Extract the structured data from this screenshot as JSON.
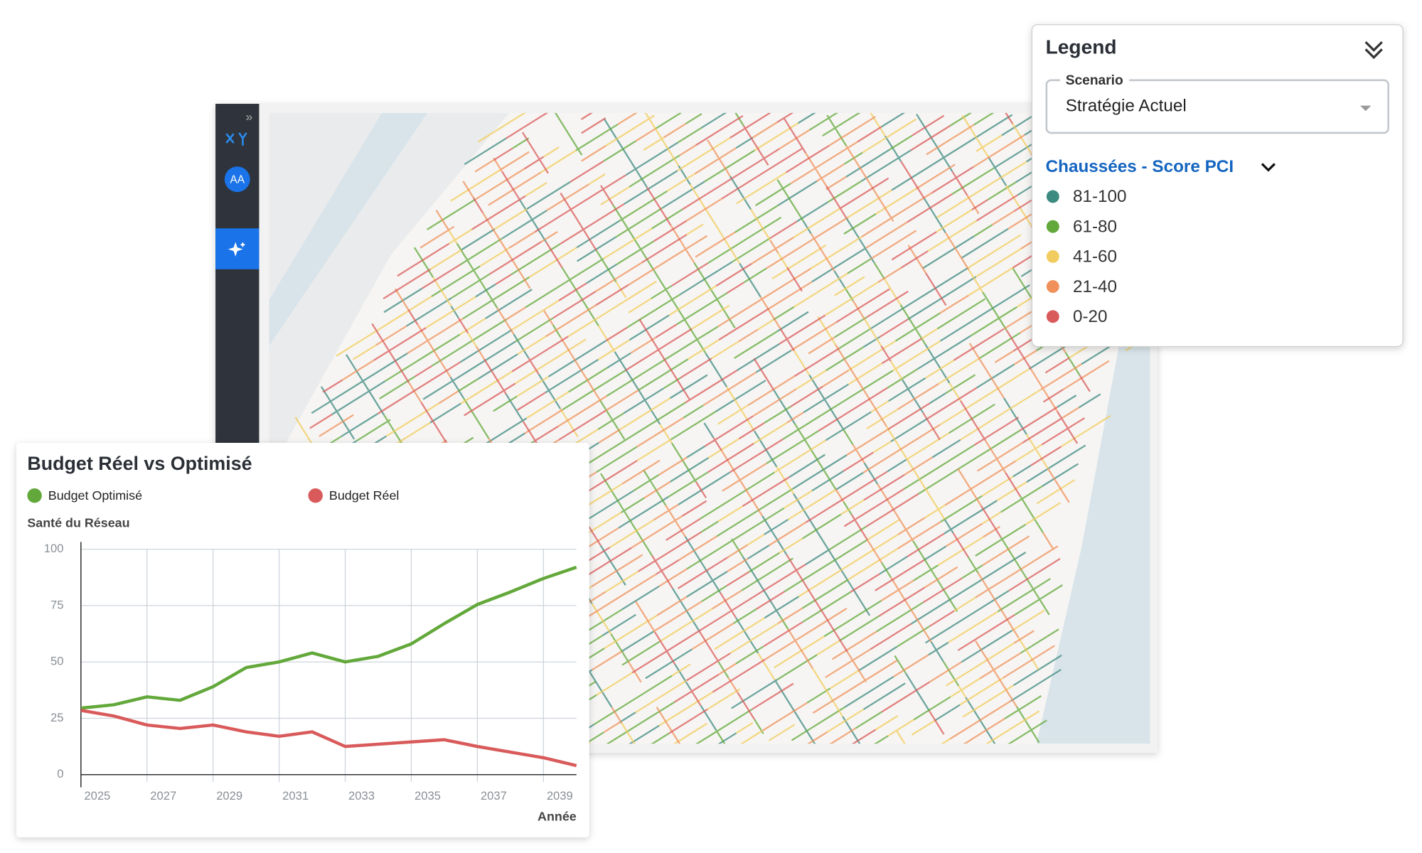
{
  "sidebar": {
    "avatar": "AA"
  },
  "legend": {
    "title": "Legend",
    "scenario_label": "Scenario",
    "scenario_value": "Stratégie Actuel",
    "layer_title": "Chaussées - Score PCI",
    "items": [
      {
        "label": "81-100",
        "color": "#3d8a80"
      },
      {
        "label": "61-80",
        "color": "#62a83a"
      },
      {
        "label": "41-60",
        "color": "#f2cc5e"
      },
      {
        "label": "21-40",
        "color": "#f0905a"
      },
      {
        "label": "0-20",
        "color": "#d95a5a"
      }
    ]
  },
  "chart_data": {
    "type": "line",
    "title": "Budget Réel vs Optimisé",
    "y_label": "Santé du Réseau",
    "x_label": "Année",
    "x": [
      2025,
      2026,
      2027,
      2028,
      2029,
      2030,
      2031,
      2032,
      2033,
      2034,
      2035,
      2036,
      2037,
      2038,
      2039,
      2040
    ],
    "xlim": [
      2025,
      2040
    ],
    "xticks": [
      2025,
      2027,
      2029,
      2031,
      2033,
      2035,
      2037,
      2039
    ],
    "ylim": [
      0,
      100
    ],
    "yticks": [
      0,
      25,
      50,
      75,
      100
    ],
    "grid": true,
    "series": [
      {
        "name": "Budget Optimisé",
        "color": "#62a83a",
        "values": [
          29.5,
          31,
          34.5,
          33,
          39,
          47.5,
          50,
          54,
          50,
          52.5,
          58,
          67,
          75.5,
          81,
          87,
          92
        ]
      },
      {
        "name": "Budget Réel",
        "color": "#d95a5a",
        "values": [
          28.5,
          26,
          22,
          20.5,
          22,
          19,
          17,
          19,
          12.5,
          13.5,
          14.5,
          15.5,
          12.5,
          10,
          7.5,
          4
        ]
      }
    ]
  }
}
